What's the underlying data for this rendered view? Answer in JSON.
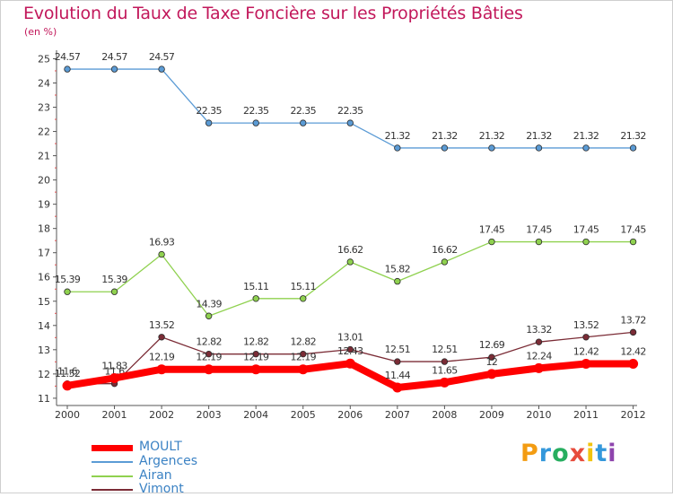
{
  "chart_data": {
    "type": "line",
    "title": "Evolution du Taux de Taxe Foncière sur les Propriétés Bâties",
    "subtitle": "(en %)",
    "x": [
      "2000",
      "2001",
      "2002",
      "2003",
      "2004",
      "2005",
      "2006",
      "2007",
      "2008",
      "2009",
      "2010",
      "2011",
      "2012"
    ],
    "y_ticks": [
      "11",
      "12",
      "13",
      "14",
      "15",
      "16",
      "17",
      "18",
      "19",
      "20",
      "21",
      "22",
      "23",
      "24",
      "25"
    ],
    "ylim": [
      10.7,
      25.35
    ],
    "grid": false,
    "legend_position": "bottom-left",
    "series": [
      {
        "name": "Argences",
        "color": "#5b9bd5",
        "values": [
          24.57,
          24.57,
          24.57,
          22.35,
          22.35,
          22.35,
          22.35,
          21.32,
          21.32,
          21.32,
          21.32,
          21.32,
          21.32
        ],
        "labels": [
          "24.57",
          "24.57",
          "24.57",
          "22.35",
          "22.35",
          "22.35",
          "22.35",
          "21.32",
          "21.32",
          "21.32",
          "21.32",
          "21.32",
          "21.32"
        ]
      },
      {
        "name": "Airan",
        "color": "#8fd14f",
        "values": [
          15.39,
          15.39,
          16.93,
          14.39,
          15.11,
          15.11,
          16.62,
          15.82,
          16.62,
          17.45,
          17.45,
          17.45,
          17.45
        ],
        "labels": [
          "15.39",
          "15.39",
          "16.93",
          "14.39",
          "15.11",
          "15.11",
          "16.62",
          "15.82",
          "16.62",
          "17.45",
          "17.45",
          "17.45",
          "17.45"
        ]
      },
      {
        "name": "Vimont",
        "color": "#7b2c36",
        "values": [
          11.6,
          11.6,
          13.52,
          12.82,
          12.82,
          12.82,
          13.01,
          12.51,
          12.51,
          12.69,
          13.32,
          13.52,
          13.72
        ],
        "labels": [
          "11.6",
          "11.6",
          "13.52",
          "12.82",
          "12.82",
          "12.82",
          "13.01",
          "12.51",
          "12.51",
          "12.69",
          "13.32",
          "13.52",
          "13.72"
        ]
      },
      {
        "name": "MOULT",
        "color": "#ff0000",
        "values": [
          11.52,
          11.83,
          12.19,
          12.19,
          12.19,
          12.19,
          12.43,
          11.44,
          11.65,
          12.0,
          12.24,
          12.42,
          12.42
        ],
        "labels": [
          "11.52",
          "11.83",
          "12.19",
          "12.19",
          "12.19",
          "12.19",
          "12.43",
          "11.44",
          "11.65",
          "12",
          "12.24",
          "12.42",
          "12.42"
        ]
      }
    ],
    "legend": [
      "MOULT",
      "Argences",
      "Airan",
      "Vimont"
    ]
  },
  "logo_text": "Proxiti"
}
